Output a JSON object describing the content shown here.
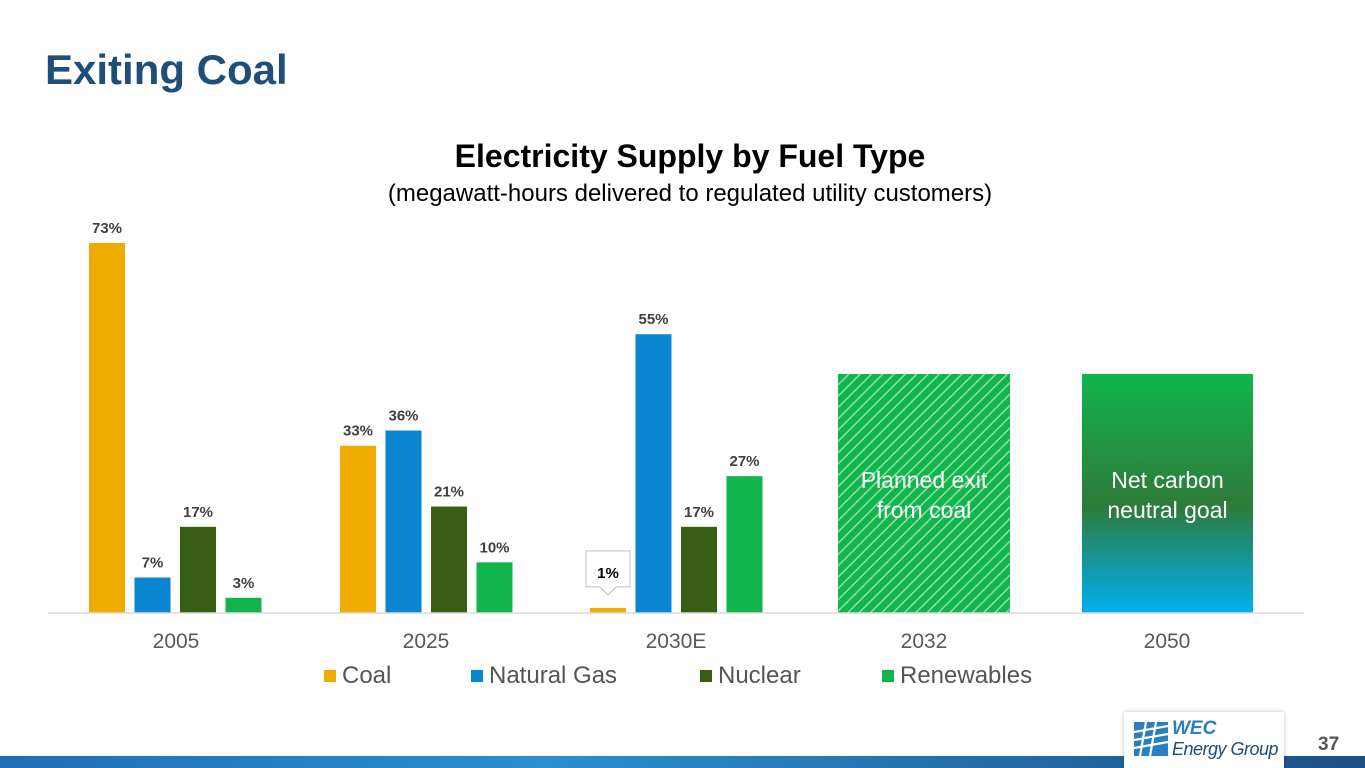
{
  "slide": {
    "title": "Exiting Coal",
    "page_number": "37"
  },
  "logo": {
    "line1": "WEC",
    "line2": "Energy Group",
    "brand_color": "#2a7fc0"
  },
  "chart_data": {
    "type": "bar",
    "title": "Electricity Supply by Fuel Type",
    "subtitle": "(megawatt-hours delivered to regulated utility customers)",
    "categories": [
      "2005",
      "2025",
      "2030E",
      "2032",
      "2050"
    ],
    "value_format": "percent",
    "ylim": [
      0,
      75
    ],
    "grid": false,
    "legend_position": "bottom",
    "series": [
      {
        "name": "Coal",
        "color": "#f0ab00",
        "values": [
          73,
          33,
          1,
          null,
          null
        ]
      },
      {
        "name": "Natural Gas",
        "color": "#0a86d0",
        "values": [
          7,
          36,
          55,
          null,
          null
        ]
      },
      {
        "name": "Nuclear",
        "color": "#375e14",
        "values": [
          17,
          21,
          17,
          null,
          null
        ]
      },
      {
        "name": "Renewables",
        "color": "#12b54c",
        "values": [
          3,
          10,
          27,
          null,
          null
        ]
      }
    ],
    "data_labels": [
      [
        "73%",
        "33%",
        "1%",
        null,
        null
      ],
      [
        "7%",
        "36%",
        "55%",
        null,
        null
      ],
      [
        "17%",
        "21%",
        "17%",
        null,
        null
      ],
      [
        "3%",
        "10%",
        "27%",
        null,
        null
      ]
    ],
    "callouts": [
      {
        "category": "2032",
        "text_line1": "Planned exit",
        "text_line2": "from coal",
        "style": "hatched-green"
      },
      {
        "category": "2050",
        "text_line1": "Net carbon",
        "text_line2": "neutral goal",
        "style": "green-to-blue-gradient"
      }
    ]
  }
}
